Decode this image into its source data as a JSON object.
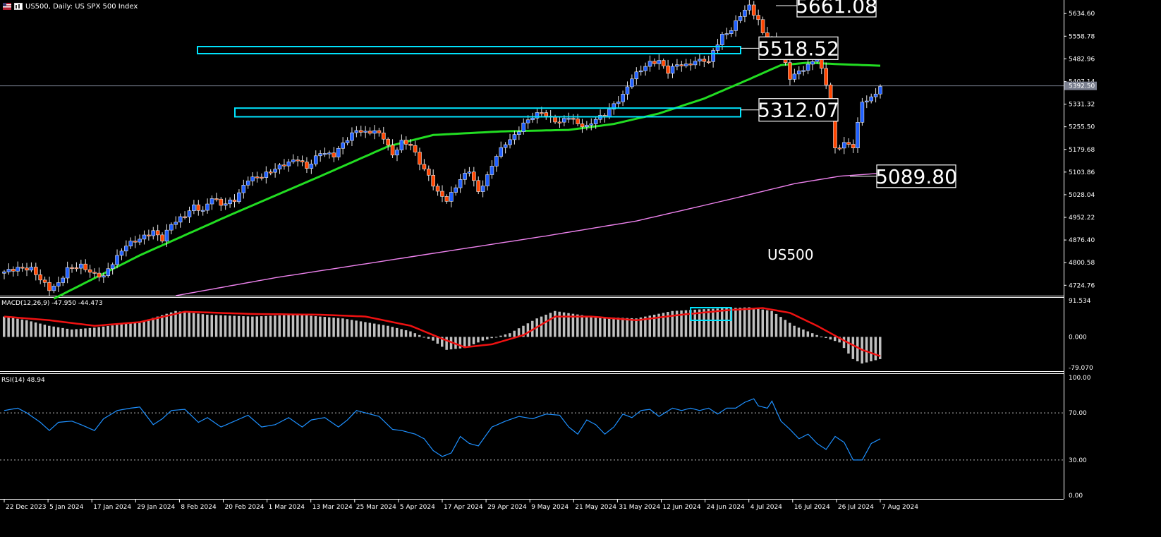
{
  "header": {
    "title": "US500, Daily:  US SPX 500 Index"
  },
  "colors": {
    "background": "#000000",
    "bull_candle": "#1f5fff",
    "bear_candle": "#ff4500",
    "ma_fast": "#22dd22",
    "ma_slow": "#ee82ee",
    "zone": "#00e5ff",
    "macd_hist": "#c0c0c0",
    "macd_signal": "#ee1111",
    "rsi_line": "#1e90ff",
    "axis_text": "#ffffff",
    "label_box": "#ffffff"
  },
  "chart_data": {
    "type": "candlestick",
    "symbol_label": "US500",
    "price_axis": {
      "ticks": [
        "5634.60",
        "5558.78",
        "5482.96",
        "5407.14",
        "5331.32",
        "5255.50",
        "5179.68",
        "5103.86",
        "5028.04",
        "4952.22",
        "4876.40",
        "4800.58",
        "4724.76"
      ],
      "current_price": "5392.50",
      "ylim": [
        4690,
        5680
      ]
    },
    "date_axis": {
      "labels": [
        "22 Dec 2023",
        "5 Jan 2024",
        "17 Jan 2024",
        "29 Jan 2024",
        "8 Feb 2024",
        "20 Feb 2024",
        "1 Mar 2024",
        "13 Mar 2024",
        "25 Mar 2024",
        "5 Apr 2024",
        "17 Apr 2024",
        "29 Apr 2024",
        "9 May 2024",
        "21 May 2024",
        "31 May 2024",
        "12 Jun 2024",
        "24 Jun 2024",
        "4 Jul 2024",
        "16 Jul 2024",
        "26 Jul 2024",
        "7 Aug 2024"
      ]
    },
    "annotations": [
      {
        "text": "5661.08",
        "price": 5661.08
      },
      {
        "text": "5518.52",
        "price": 5518.52
      },
      {
        "text": "5312.07",
        "price": 5312.07
      },
      {
        "text": "5089.80",
        "price": 5089.8
      }
    ],
    "zones": [
      {
        "top": 5524,
        "bottom": 5508,
        "label": "5518.52"
      },
      {
        "top": 5318,
        "bottom": 5289,
        "label": "5312.07"
      }
    ],
    "close_path": [
      [
        0,
        4770
      ],
      [
        3,
        4782
      ],
      [
        6,
        4780
      ],
      [
        8,
        4745
      ],
      [
        10,
        4712
      ],
      [
        12,
        4730
      ],
      [
        14,
        4780
      ],
      [
        17,
        4790
      ],
      [
        20,
        4760
      ],
      [
        22,
        4755
      ],
      [
        24,
        4800
      ],
      [
        27,
        4860
      ],
      [
        30,
        4880
      ],
      [
        33,
        4905
      ],
      [
        35,
        4878
      ],
      [
        37,
        4930
      ],
      [
        40,
        4958
      ],
      [
        42,
        4990
      ],
      [
        44,
        4972
      ],
      [
        46,
        5020
      ],
      [
        48,
        4995
      ],
      [
        51,
        5010
      ],
      [
        54,
        5080
      ],
      [
        57,
        5090
      ],
      [
        60,
        5115
      ],
      [
        62,
        5130
      ],
      [
        65,
        5148
      ],
      [
        67,
        5117
      ],
      [
        70,
        5170
      ],
      [
        73,
        5160
      ],
      [
        75,
        5200
      ],
      [
        78,
        5245
      ],
      [
        80,
        5235
      ],
      [
        82,
        5242
      ],
      [
        84,
        5220
      ],
      [
        86,
        5160
      ],
      [
        88,
        5205
      ],
      [
        90,
        5195
      ],
      [
        92,
        5135
      ],
      [
        94,
        5090
      ],
      [
        96,
        5035
      ],
      [
        98,
        5010
      ],
      [
        99,
        5030
      ],
      [
        101,
        5080
      ],
      [
        103,
        5110
      ],
      [
        105,
        5036
      ],
      [
        107,
        5090
      ],
      [
        109,
        5160
      ],
      [
        111,
        5200
      ],
      [
        113,
        5225
      ],
      [
        115,
        5265
      ],
      [
        117,
        5290
      ],
      [
        119,
        5305
      ],
      [
        121,
        5283
      ],
      [
        123,
        5270
      ],
      [
        125,
        5290
      ],
      [
        127,
        5265
      ],
      [
        129,
        5255
      ],
      [
        131,
        5282
      ],
      [
        133,
        5295
      ],
      [
        135,
        5330
      ],
      [
        137,
        5360
      ],
      [
        139,
        5420
      ],
      [
        141,
        5447
      ],
      [
        143,
        5470
      ],
      [
        145,
        5475
      ],
      [
        147,
        5440
      ],
      [
        149,
        5465
      ],
      [
        151,
        5460
      ],
      [
        153,
        5475
      ],
      [
        155,
        5480
      ],
      [
        156,
        5470
      ],
      [
        157,
        5510
      ],
      [
        159,
        5560
      ],
      [
        161,
        5580
      ],
      [
        163,
        5630
      ],
      [
        165,
        5660
      ],
      [
        167,
        5610
      ],
      [
        168,
        5570
      ],
      [
        170,
        5545
      ],
      [
        172,
        5510
      ],
      [
        174,
        5420
      ],
      [
        176,
        5440
      ],
      [
        178,
        5460
      ],
      [
        180,
        5490
      ],
      [
        182,
        5400
      ],
      [
        184,
        5180
      ],
      [
        186,
        5200
      ],
      [
        188,
        5190
      ],
      [
        190,
        5340
      ],
      [
        192,
        5350
      ],
      [
        194,
        5390
      ]
    ],
    "ma_fast_path": [
      [
        11,
        4680
      ],
      [
        30,
        4825
      ],
      [
        50,
        4960
      ],
      [
        70,
        5090
      ],
      [
        85,
        5190
      ],
      [
        95,
        5228
      ],
      [
        110,
        5240
      ],
      [
        125,
        5245
      ],
      [
        135,
        5265
      ],
      [
        145,
        5300
      ],
      [
        155,
        5350
      ],
      [
        165,
        5415
      ],
      [
        172,
        5462
      ],
      [
        178,
        5470
      ],
      [
        185,
        5465
      ],
      [
        194,
        5460
      ]
    ],
    "ma_slow_path": [
      [
        38,
        4690
      ],
      [
        60,
        4750
      ],
      [
        90,
        4820
      ],
      [
        120,
        4890
      ],
      [
        140,
        4940
      ],
      [
        160,
        5010
      ],
      [
        175,
        5065
      ],
      [
        185,
        5090
      ],
      [
        194,
        5100
      ]
    ],
    "macd": {
      "label": "MACD(12,26,9) -47.950 -44.473",
      "ticks": [
        "91.534",
        "0.000",
        "-79.070"
      ],
      "ylim": [
        -85,
        100
      ],
      "hist_path": [
        [
          0,
          55
        ],
        [
          5,
          45
        ],
        [
          10,
          30
        ],
        [
          15,
          20
        ],
        [
          20,
          25
        ],
        [
          30,
          40
        ],
        [
          38,
          70
        ],
        [
          45,
          60
        ],
        [
          55,
          55
        ],
        [
          65,
          60
        ],
        [
          75,
          50
        ],
        [
          85,
          30
        ],
        [
          90,
          15
        ],
        [
          95,
          -10
        ],
        [
          98,
          -35
        ],
        [
          102,
          -30
        ],
        [
          106,
          -10
        ],
        [
          112,
          10
        ],
        [
          118,
          50
        ],
        [
          122,
          70
        ],
        [
          130,
          55
        ],
        [
          140,
          50
        ],
        [
          148,
          70
        ],
        [
          155,
          75
        ],
        [
          165,
          80
        ],
        [
          170,
          70
        ],
        [
          175,
          30
        ],
        [
          180,
          5
        ],
        [
          185,
          -15
        ],
        [
          188,
          -60
        ],
        [
          190,
          -72
        ],
        [
          194,
          -60
        ]
      ],
      "signal_path": [
        [
          0,
          55
        ],
        [
          10,
          45
        ],
        [
          20,
          30
        ],
        [
          30,
          40
        ],
        [
          40,
          68
        ],
        [
          55,
          62
        ],
        [
          70,
          60
        ],
        [
          80,
          55
        ],
        [
          90,
          30
        ],
        [
          97,
          -5
        ],
        [
          102,
          -28
        ],
        [
          108,
          -20
        ],
        [
          115,
          5
        ],
        [
          122,
          55
        ],
        [
          130,
          55
        ],
        [
          140,
          45
        ],
        [
          150,
          60
        ],
        [
          160,
          72
        ],
        [
          168,
          78
        ],
        [
          174,
          65
        ],
        [
          180,
          30
        ],
        [
          186,
          -10
        ],
        [
          190,
          -35
        ],
        [
          194,
          -52
        ]
      ],
      "highlight_box": {
        "x_start": 152,
        "x_end": 161
      }
    },
    "rsi": {
      "label": "RSI(14) 48.94",
      "ticks": [
        "100.00",
        "70.00",
        "30.00",
        "0.00"
      ],
      "levels": [
        70,
        30
      ],
      "ylim": [
        0,
        100
      ],
      "path": [
        [
          0,
          72
        ],
        [
          3,
          74
        ],
        [
          5,
          70
        ],
        [
          8,
          62
        ],
        [
          10,
          55
        ],
        [
          12,
          62
        ],
        [
          15,
          63
        ],
        [
          17,
          60
        ],
        [
          20,
          55
        ],
        [
          22,
          65
        ],
        [
          25,
          72
        ],
        [
          28,
          74
        ],
        [
          30,
          75
        ],
        [
          33,
          60
        ],
        [
          35,
          65
        ],
        [
          37,
          72
        ],
        [
          40,
          73
        ],
        [
          43,
          62
        ],
        [
          45,
          66
        ],
        [
          48,
          58
        ],
        [
          51,
          63
        ],
        [
          54,
          68
        ],
        [
          57,
          58
        ],
        [
          60,
          60
        ],
        [
          63,
          66
        ],
        [
          66,
          58
        ],
        [
          68,
          64
        ],
        [
          71,
          66
        ],
        [
          74,
          58
        ],
        [
          76,
          64
        ],
        [
          78,
          72
        ],
        [
          80,
          70
        ],
        [
          83,
          67
        ],
        [
          86,
          56
        ],
        [
          88,
          55
        ],
        [
          91,
          52
        ],
        [
          93,
          48
        ],
        [
          95,
          38
        ],
        [
          97,
          33
        ],
        [
          99,
          36
        ],
        [
          101,
          50
        ],
        [
          103,
          44
        ],
        [
          105,
          42
        ],
        [
          108,
          58
        ],
        [
          111,
          63
        ],
        [
          114,
          67
        ],
        [
          117,
          65
        ],
        [
          120,
          69
        ],
        [
          123,
          68
        ],
        [
          125,
          58
        ],
        [
          127,
          52
        ],
        [
          129,
          64
        ],
        [
          131,
          60
        ],
        [
          133,
          52
        ],
        [
          135,
          58
        ],
        [
          137,
          69
        ],
        [
          139,
          66
        ],
        [
          141,
          72
        ],
        [
          143,
          73
        ],
        [
          145,
          67
        ],
        [
          148,
          74
        ],
        [
          150,
          72
        ],
        [
          152,
          74
        ],
        [
          154,
          72
        ],
        [
          156,
          74
        ],
        [
          158,
          69
        ],
        [
          160,
          74
        ],
        [
          162,
          74
        ],
        [
          164,
          79
        ],
        [
          166,
          82
        ],
        [
          167,
          76
        ],
        [
          169,
          74
        ],
        [
          170,
          80
        ],
        [
          172,
          63
        ],
        [
          174,
          56
        ],
        [
          176,
          48
        ],
        [
          178,
          52
        ],
        [
          180,
          44
        ],
        [
          182,
          39
        ],
        [
          184,
          50
        ],
        [
          186,
          45
        ],
        [
          188,
          30
        ],
        [
          190,
          30
        ],
        [
          192,
          44
        ],
        [
          194,
          48
        ]
      ]
    }
  }
}
